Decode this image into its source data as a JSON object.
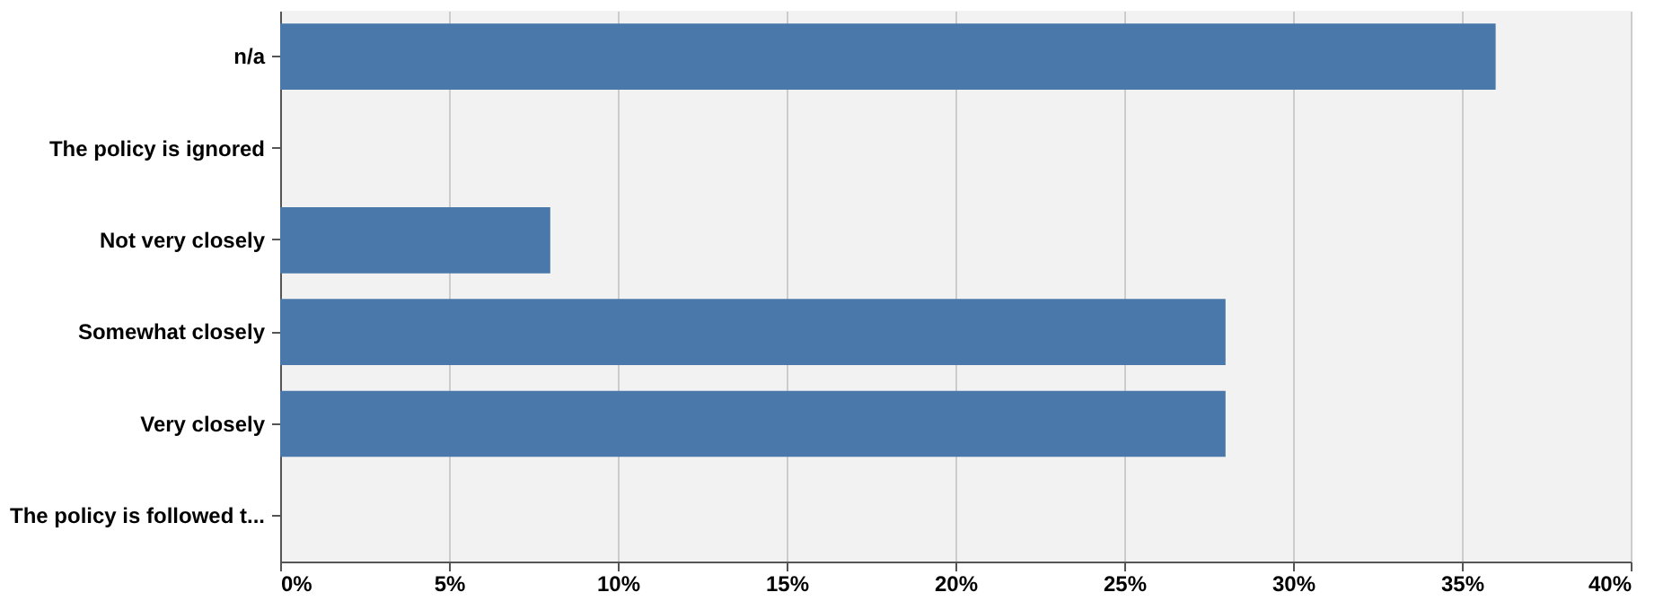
{
  "chart_data": {
    "type": "bar",
    "orientation": "horizontal",
    "categories": [
      "n/a",
      "The policy is ignored",
      "Not very closely",
      "Somewhat closely",
      "Very closely",
      "The policy is followed t..."
    ],
    "values": [
      36,
      0,
      8,
      28,
      28,
      0
    ],
    "color": "#4a78aa",
    "xlim": [
      0,
      40
    ],
    "xticks": [
      {
        "value": 0,
        "label": "0%"
      },
      {
        "value": 5,
        "label": "5%"
      },
      {
        "value": 10,
        "label": "10%"
      },
      {
        "value": 15,
        "label": "15%"
      },
      {
        "value": 20,
        "label": "20%"
      },
      {
        "value": 25,
        "label": "25%"
      },
      {
        "value": 30,
        "label": "30%"
      },
      {
        "value": 35,
        "label": "35%"
      },
      {
        "value": 40,
        "label": "40%"
      }
    ],
    "grid": "x"
  }
}
